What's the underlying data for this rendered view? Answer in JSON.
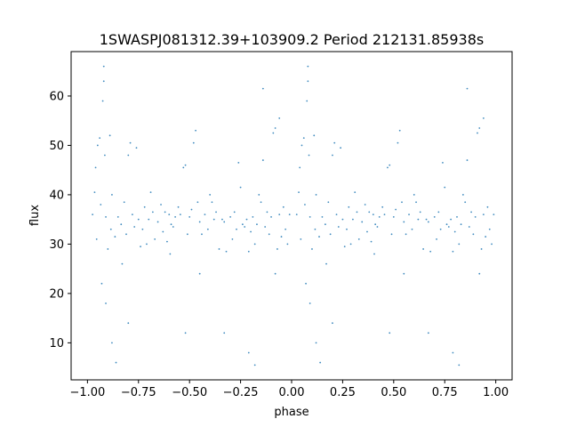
{
  "chart_data": {
    "type": "scatter",
    "title": "1SWASPJ081312.39+103909.2 Period 212131.85938s",
    "xlabel": "phase",
    "ylabel": "flux",
    "xlim": [
      -1.08,
      1.08
    ],
    "ylim": [
      2.5,
      69
    ],
    "xticks": [
      -1.0,
      -0.75,
      -0.5,
      -0.25,
      0.0,
      0.25,
      0.5,
      0.75,
      1.0
    ],
    "xtick_labels": [
      "−1.00",
      "−0.75",
      "−0.50",
      "−0.25",
      "0.00",
      "0.25",
      "0.50",
      "0.75",
      "1.00"
    ],
    "yticks": [
      10,
      20,
      30,
      40,
      50,
      60
    ],
    "ytick_labels": [
      "10",
      "20",
      "30",
      "40",
      "50",
      "60"
    ],
    "grid": false,
    "point_color": "#1f77b4",
    "series": [
      {
        "points": [
          [
            0.025,
            36.0
          ],
          [
            0.035,
            40.5
          ],
          [
            0.04,
            45.5
          ],
          [
            0.045,
            31.0
          ],
          [
            0.05,
            50.0
          ],
          [
            0.06,
            51.5
          ],
          [
            0.065,
            38.0
          ],
          [
            0.075,
            59.0
          ],
          [
            0.08,
            63.0
          ],
          [
            0.085,
            48.0
          ],
          [
            0.09,
            35.5
          ],
          [
            0.1,
            29.0
          ],
          [
            0.11,
            52.0
          ],
          [
            0.115,
            33.0
          ],
          [
            0.12,
            40.0
          ],
          [
            0.135,
            31.5
          ],
          [
            0.15,
            35.5
          ],
          [
            0.165,
            34.0
          ],
          [
            0.18,
            38.5
          ],
          [
            0.19,
            32.0
          ],
          [
            0.2,
            48.0
          ],
          [
            0.21,
            50.5
          ],
          [
            0.22,
            36.0
          ],
          [
            0.23,
            33.5
          ],
          [
            0.24,
            49.5
          ],
          [
            0.25,
            35.0
          ],
          [
            0.26,
            29.5
          ],
          [
            0.27,
            33.0
          ],
          [
            0.28,
            37.5
          ],
          [
            0.29,
            30.0
          ],
          [
            0.3,
            35.0
          ],
          [
            0.31,
            40.5
          ],
          [
            0.32,
            36.5
          ],
          [
            0.33,
            31.0
          ],
          [
            0.345,
            34.5
          ],
          [
            0.36,
            38.0
          ],
          [
            0.37,
            32.5
          ],
          [
            0.38,
            36.5
          ],
          [
            0.39,
            30.5
          ],
          [
            0.4,
            36.0
          ],
          [
            0.405,
            28.0
          ],
          [
            0.41,
            34.0
          ],
          [
            0.42,
            33.5
          ],
          [
            0.43,
            35.5
          ],
          [
            0.445,
            37.5
          ],
          [
            0.455,
            36.0
          ],
          [
            0.47,
            45.5
          ],
          [
            0.48,
            46.0
          ],
          [
            0.49,
            32.0
          ],
          [
            0.5,
            35.5
          ],
          [
            0.51,
            37.0
          ],
          [
            0.52,
            50.5
          ],
          [
            0.53,
            53.0
          ],
          [
            0.54,
            38.5
          ],
          [
            0.55,
            34.5
          ],
          [
            0.56,
            32.0
          ],
          [
            0.575,
            36.0
          ],
          [
            0.59,
            33.0
          ],
          [
            0.6,
            40.0
          ],
          [
            0.61,
            38.5
          ],
          [
            0.62,
            35.0
          ],
          [
            0.63,
            36.5
          ],
          [
            0.645,
            29.0
          ],
          [
            0.66,
            35.0
          ],
          [
            0.67,
            34.5
          ],
          [
            0.68,
            28.5
          ],
          [
            0.7,
            35.5
          ],
          [
            0.71,
            31.0
          ],
          [
            0.72,
            36.5
          ],
          [
            0.73,
            33.0
          ],
          [
            0.74,
            46.5
          ],
          [
            0.75,
            41.5
          ],
          [
            0.76,
            34.0
          ],
          [
            0.77,
            33.5
          ],
          [
            0.78,
            35.0
          ],
          [
            0.79,
            28.5
          ],
          [
            0.8,
            32.5
          ],
          [
            0.81,
            35.5
          ],
          [
            0.82,
            30.0
          ],
          [
            0.83,
            34.0
          ],
          [
            0.84,
            40.0
          ],
          [
            0.85,
            38.5
          ],
          [
            0.86,
            47.0
          ],
          [
            0.87,
            33.5
          ],
          [
            0.88,
            36.5
          ],
          [
            0.89,
            32.0
          ],
          [
            0.9,
            35.5
          ],
          [
            0.91,
            52.5
          ],
          [
            0.92,
            53.5
          ],
          [
            0.93,
            29.0
          ],
          [
            0.94,
            36.0
          ],
          [
            0.95,
            31.5
          ],
          [
            0.96,
            37.5
          ],
          [
            0.97,
            33.0
          ],
          [
            0.98,
            30.0
          ],
          [
            0.99,
            36.0
          ],
          [
            -0.975,
            36.0
          ],
          [
            -0.965,
            40.5
          ],
          [
            -0.96,
            45.5
          ],
          [
            -0.955,
            31.0
          ],
          [
            -0.95,
            50.0
          ],
          [
            -0.94,
            51.5
          ],
          [
            -0.935,
            38.0
          ],
          [
            -0.925,
            59.0
          ],
          [
            -0.92,
            63.0
          ],
          [
            -0.915,
            48.0
          ],
          [
            -0.91,
            35.5
          ],
          [
            -0.9,
            29.0
          ],
          [
            -0.89,
            52.0
          ],
          [
            -0.885,
            33.0
          ],
          [
            -0.88,
            40.0
          ],
          [
            -0.865,
            31.5
          ],
          [
            -0.85,
            35.5
          ],
          [
            -0.835,
            34.0
          ],
          [
            -0.82,
            38.5
          ],
          [
            -0.81,
            32.0
          ],
          [
            -0.8,
            48.0
          ],
          [
            -0.79,
            50.5
          ],
          [
            -0.78,
            36.0
          ],
          [
            -0.77,
            33.5
          ],
          [
            -0.76,
            49.5
          ],
          [
            -0.75,
            35.0
          ],
          [
            -0.74,
            29.5
          ],
          [
            -0.73,
            33.0
          ],
          [
            -0.72,
            37.5
          ],
          [
            -0.71,
            30.0
          ],
          [
            -0.7,
            35.0
          ],
          [
            -0.69,
            40.5
          ],
          [
            -0.68,
            36.5
          ],
          [
            -0.67,
            31.0
          ],
          [
            -0.655,
            34.5
          ],
          [
            -0.64,
            38.0
          ],
          [
            -0.63,
            32.5
          ],
          [
            -0.62,
            36.5
          ],
          [
            -0.61,
            30.5
          ],
          [
            -0.6,
            36.0
          ],
          [
            -0.595,
            28.0
          ],
          [
            -0.59,
            34.0
          ],
          [
            -0.58,
            33.5
          ],
          [
            -0.57,
            35.5
          ],
          [
            -0.555,
            37.5
          ],
          [
            -0.545,
            36.0
          ],
          [
            -0.53,
            45.5
          ],
          [
            -0.52,
            46.0
          ],
          [
            -0.51,
            32.0
          ],
          [
            -0.5,
            35.5
          ],
          [
            -0.49,
            37.0
          ],
          [
            -0.48,
            50.5
          ],
          [
            -0.47,
            53.0
          ],
          [
            -0.46,
            38.5
          ],
          [
            -0.45,
            34.5
          ],
          [
            -0.44,
            32.0
          ],
          [
            -0.425,
            36.0
          ],
          [
            -0.41,
            33.0
          ],
          [
            -0.4,
            40.0
          ],
          [
            -0.39,
            38.5
          ],
          [
            -0.38,
            35.0
          ],
          [
            -0.37,
            36.5
          ],
          [
            -0.355,
            29.0
          ],
          [
            -0.34,
            35.0
          ],
          [
            -0.33,
            34.5
          ],
          [
            -0.32,
            28.5
          ],
          [
            -0.3,
            35.5
          ],
          [
            -0.29,
            31.0
          ],
          [
            -0.28,
            36.5
          ],
          [
            -0.27,
            33.0
          ],
          [
            -0.26,
            46.5
          ],
          [
            -0.25,
            41.5
          ],
          [
            -0.24,
            34.0
          ],
          [
            -0.23,
            33.5
          ],
          [
            -0.22,
            35.0
          ],
          [
            -0.21,
            28.5
          ],
          [
            -0.2,
            32.5
          ],
          [
            -0.19,
            35.5
          ],
          [
            -0.18,
            30.0
          ],
          [
            -0.17,
            34.0
          ],
          [
            -0.16,
            40.0
          ],
          [
            -0.15,
            38.5
          ],
          [
            -0.14,
            47.0
          ],
          [
            -0.13,
            33.5
          ],
          [
            -0.12,
            36.5
          ],
          [
            -0.11,
            32.0
          ],
          [
            -0.1,
            35.5
          ],
          [
            -0.09,
            52.5
          ],
          [
            -0.08,
            53.5
          ],
          [
            -0.07,
            29.0
          ],
          [
            -0.06,
            36.0
          ],
          [
            -0.05,
            31.5
          ],
          [
            -0.04,
            37.5
          ],
          [
            -0.03,
            33.0
          ],
          [
            -0.02,
            30.0
          ],
          [
            -0.01,
            36.0
          ],
          [
            0.08,
            66.0
          ],
          [
            -0.92,
            66.0
          ],
          [
            0.09,
            18.0
          ],
          [
            -0.91,
            18.0
          ],
          [
            0.12,
            10.0
          ],
          [
            -0.88,
            10.0
          ],
          [
            0.14,
            6.0
          ],
          [
            -0.86,
            6.0
          ],
          [
            -0.18,
            5.5
          ],
          [
            0.82,
            5.5
          ],
          [
            -0.21,
            8.0
          ],
          [
            0.79,
            8.0
          ],
          [
            -0.33,
            12.0
          ],
          [
            0.67,
            12.0
          ],
          [
            -0.52,
            12.0
          ],
          [
            0.48,
            12.0
          ],
          [
            0.07,
            22.0
          ],
          [
            -0.93,
            22.0
          ],
          [
            0.17,
            26.0
          ],
          [
            -0.83,
            26.0
          ],
          [
            0.55,
            24.0
          ],
          [
            -0.45,
            24.0
          ],
          [
            0.86,
            61.5
          ],
          [
            -0.14,
            61.5
          ],
          [
            0.94,
            55.5
          ],
          [
            -0.06,
            55.5
          ],
          [
            0.92,
            24.0
          ],
          [
            -0.08,
            24.0
          ],
          [
            0.2,
            14.0
          ],
          [
            -0.8,
            14.0
          ]
        ]
      }
    ]
  }
}
